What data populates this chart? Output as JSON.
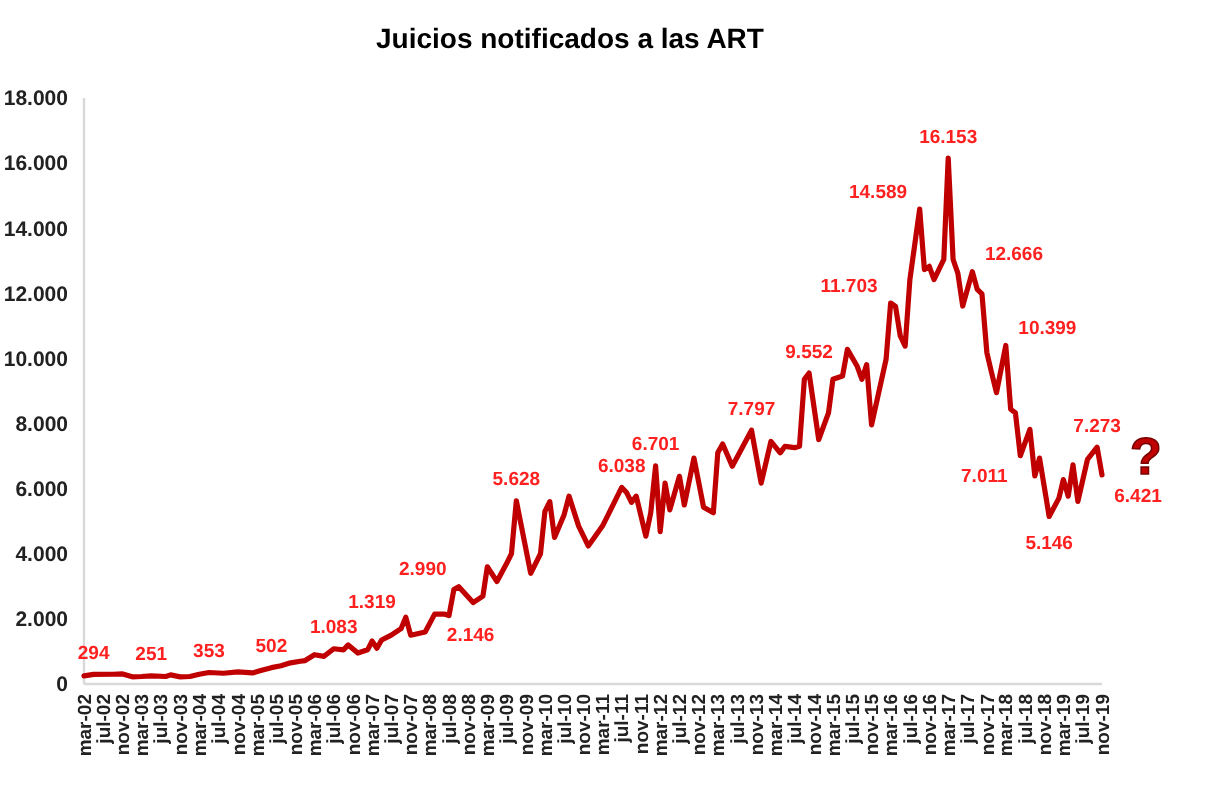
{
  "chart_data": {
    "type": "line",
    "title": "Juicios notificados a las ART",
    "x": [
      "2002-03",
      "2002-05",
      "2002-09",
      "2002-11",
      "2003-01",
      "2003-03",
      "2003-05",
      "2003-08",
      "2003-09",
      "2003-11",
      "2004-01",
      "2004-03",
      "2004-05",
      "2004-08",
      "2004-11",
      "2005-02",
      "2005-04",
      "2005-06",
      "2005-08",
      "2005-10",
      "2005-12",
      "2006-01",
      "2006-03",
      "2006-05",
      "2006-07",
      "2006-09",
      "2006-10",
      "2006-12",
      "2007-02",
      "2007-03",
      "2007-04",
      "2007-05",
      "2007-07",
      "2007-09",
      "2007-10",
      "2007-11",
      "2008-02",
      "2008-04",
      "2008-06",
      "2008-07",
      "2008-08",
      "2008-09",
      "2008-12",
      "2009-02",
      "2009-03",
      "2009-05",
      "2009-07",
      "2009-08",
      "2009-09",
      "2009-12",
      "2010-02",
      "2010-03",
      "2010-04",
      "2010-05",
      "2010-07",
      "2010-08",
      "2010-10",
      "2010-12",
      "2011-03",
      "2011-04",
      "2011-07",
      "2011-08",
      "2011-09",
      "2011-10",
      "2011-12",
      "2012-01",
      "2012-02",
      "2012-03",
      "2012-04",
      "2012-05",
      "2012-07",
      "2012-08",
      "2012-10",
      "2012-12",
      "2013-02",
      "2013-03",
      "2013-04",
      "2013-06",
      "2013-10",
      "2013-12",
      "2014-02",
      "2014-04",
      "2014-05",
      "2014-07",
      "2014-08",
      "2014-09",
      "2014-10",
      "2014-12",
      "2015-02",
      "2015-03",
      "2015-05",
      "2015-06",
      "2015-08",
      "2015-09",
      "2015-10",
      "2015-11",
      "2016-02",
      "2016-03",
      "2016-04",
      "2016-05",
      "2016-06",
      "2016-07",
      "2016-09",
      "2016-10",
      "2016-11",
      "2016-12",
      "2017-02",
      "2017-03",
      "2017-04",
      "2017-05",
      "2017-06",
      "2017-08",
      "2017-09",
      "2017-10",
      "2017-11",
      "2017-12",
      "2018-01",
      "2018-03",
      "2018-04",
      "2018-05",
      "2018-06",
      "2018-08",
      "2018-09",
      "2018-10",
      "2018-12",
      "2019-02",
      "2019-03",
      "2019-04",
      "2019-05",
      "2019-06",
      "2019-08",
      "2019-10",
      "2019-11"
    ],
    "series": [
      {
        "color": "#c00000",
        "values": [
          250,
          294,
          300,
          310,
          220,
          230,
          251,
          230,
          280,
          220,
          230,
          300,
          353,
          330,
          370,
          340,
          420,
          502,
          560,
          650,
          700,
          720,
          900,
          850,
          1083,
          1050,
          1200,
          950,
          1050,
          1319,
          1100,
          1350,
          1500,
          1700,
          2050,
          1500,
          1600,
          2146,
          2150,
          2100,
          2900,
          2990,
          2500,
          2700,
          3600,
          3150,
          3700,
          4000,
          5628,
          3400,
          4000,
          5300,
          5600,
          4500,
          5200,
          5770,
          4850,
          4240,
          4850,
          5150,
          6038,
          5880,
          5580,
          5770,
          4540,
          5260,
          6701,
          4680,
          6170,
          5350,
          6380,
          5500,
          6940,
          5430,
          5260,
          7100,
          7370,
          6690,
          7797,
          6170,
          7450,
          7100,
          7300,
          7260,
          7300,
          9360,
          9552,
          7510,
          8330,
          9360,
          9460,
          10280,
          9770,
          9360,
          9810,
          7960,
          9970,
          11703,
          11600,
          10690,
          10380,
          12420,
          14589,
          12730,
          12830,
          12420,
          13040,
          16153,
          13040,
          12620,
          11610,
          12666,
          12120,
          11980,
          10180,
          9560,
          8950,
          10399,
          8440,
          8330,
          7011,
          7820,
          6390,
          6940,
          5146,
          5710,
          6280,
          5770,
          6730,
          5610,
          6900,
          7273,
          6421
        ]
      }
    ],
    "xlim": [
      "2002-03",
      "2019-11"
    ],
    "xticks": [
      {
        "value": "2002-03",
        "label": "mar-02"
      },
      {
        "value": "2002-07",
        "label": "jul-02"
      },
      {
        "value": "2002-11",
        "label": "nov-02"
      },
      {
        "value": "2003-03",
        "label": "mar-03"
      },
      {
        "value": "2003-07",
        "label": "jul-03"
      },
      {
        "value": "2003-11",
        "label": "nov-03"
      },
      {
        "value": "2004-03",
        "label": "mar-04"
      },
      {
        "value": "2004-07",
        "label": "jul-04"
      },
      {
        "value": "2004-11",
        "label": "nov-04"
      },
      {
        "value": "2005-03",
        "label": "mar-05"
      },
      {
        "value": "2005-07",
        "label": "jul-05"
      },
      {
        "value": "2005-11",
        "label": "nov-05"
      },
      {
        "value": "2006-03",
        "label": "mar-06"
      },
      {
        "value": "2006-07",
        "label": "jul-06"
      },
      {
        "value": "2006-11",
        "label": "nov-06"
      },
      {
        "value": "2007-03",
        "label": "mar-07"
      },
      {
        "value": "2007-07",
        "label": "jul-07"
      },
      {
        "value": "2007-11",
        "label": "nov-07"
      },
      {
        "value": "2008-03",
        "label": "mar-08"
      },
      {
        "value": "2008-07",
        "label": "jul-08"
      },
      {
        "value": "2008-11",
        "label": "nov-08"
      },
      {
        "value": "2009-03",
        "label": "mar-09"
      },
      {
        "value": "2009-07",
        "label": "jul-09"
      },
      {
        "value": "2009-11",
        "label": "nov-09"
      },
      {
        "value": "2010-03",
        "label": "mar-10"
      },
      {
        "value": "2010-07",
        "label": "jul-10"
      },
      {
        "value": "2010-11",
        "label": "nov-10"
      },
      {
        "value": "2011-03",
        "label": "mar-11"
      },
      {
        "value": "2011-07",
        "label": "jul-11"
      },
      {
        "value": "2011-11",
        "label": "nov-11"
      },
      {
        "value": "2012-03",
        "label": "mar-12"
      },
      {
        "value": "2012-07",
        "label": "jul-12"
      },
      {
        "value": "2012-11",
        "label": "nov-12"
      },
      {
        "value": "2013-03",
        "label": "mar-13"
      },
      {
        "value": "2013-07",
        "label": "jul-13"
      },
      {
        "value": "2013-11",
        "label": "nov-13"
      },
      {
        "value": "2014-03",
        "label": "mar-14"
      },
      {
        "value": "2014-07",
        "label": "jul-14"
      },
      {
        "value": "2014-11",
        "label": "nov-14"
      },
      {
        "value": "2015-03",
        "label": "mar-15"
      },
      {
        "value": "2015-07",
        "label": "jul-15"
      },
      {
        "value": "2015-11",
        "label": "nov-15"
      },
      {
        "value": "2016-03",
        "label": "mar-16"
      },
      {
        "value": "2016-07",
        "label": "jul-16"
      },
      {
        "value": "2016-11",
        "label": "nov-16"
      },
      {
        "value": "2017-03",
        "label": "mar-17"
      },
      {
        "value": "2017-07",
        "label": "jul-17"
      },
      {
        "value": "2017-11",
        "label": "nov-17"
      },
      {
        "value": "2018-03",
        "label": "mar-18"
      },
      {
        "value": "2018-07",
        "label": "jul-18"
      },
      {
        "value": "2018-11",
        "label": "nov-18"
      },
      {
        "value": "2019-03",
        "label": "mar-19"
      },
      {
        "value": "2019-07",
        "label": "jul-19"
      },
      {
        "value": "2019-11",
        "label": "nov-19"
      }
    ],
    "ylim": [
      0,
      18000
    ],
    "yticks": [
      0,
      {
        "value": 2000,
        "label": "2.000"
      },
      {
        "value": 4000,
        "label": "4.000"
      },
      {
        "value": 6000,
        "label": "6.000"
      },
      {
        "value": 8000,
        "label": "8.000"
      },
      {
        "value": 10000,
        "label": "10.000"
      },
      {
        "value": 12000,
        "label": "12.000"
      },
      {
        "value": 14000,
        "label": "14.000"
      },
      {
        "value": 16000,
        "label": "16.000"
      },
      {
        "value": 18000,
        "label": "18.000"
      }
    ],
    "grid": false,
    "marker": "none",
    "line_style": "solid",
    "annotations": [
      {
        "text": "294",
        "x": "2002-05",
        "y": 294
      },
      {
        "text": "251",
        "x": "2003-05",
        "y": 251
      },
      {
        "text": "353",
        "x": "2004-05",
        "y": 353
      },
      {
        "text": "502",
        "x": "2005-06",
        "y": 502
      },
      {
        "text": "1.083",
        "x": "2006-07",
        "y": 1083
      },
      {
        "text": "1.319",
        "x": "2007-03",
        "y": 1319
      },
      {
        "text": "2.146",
        "x": "2008-04",
        "y": 2146
      },
      {
        "text": "2.990",
        "x": "2008-09",
        "y": 2990
      },
      {
        "text": "5.628",
        "x": "2009-09",
        "y": 5628
      },
      {
        "text": "6.038",
        "x": "2011-07",
        "y": 6038
      },
      {
        "text": "6.701",
        "x": "2012-02",
        "y": 6701
      },
      {
        "text": "7.797",
        "x": "2013-10",
        "y": 7797
      },
      {
        "text": "9.552",
        "x": "2014-10",
        "y": 9552
      },
      {
        "text": "11.703",
        "x": "2016-03",
        "y": 11703
      },
      {
        "text": "14.589",
        "x": "2016-09",
        "y": 14589
      },
      {
        "text": "16.153",
        "x": "2017-03",
        "y": 16153
      },
      {
        "text": "12.666",
        "x": "2017-08",
        "y": 12666
      },
      {
        "text": "10.399",
        "x": "2018-03",
        "y": 10399
      },
      {
        "text": "7.011",
        "x": "2018-06",
        "y": 7011
      },
      {
        "text": "5.146",
        "x": "2018-12",
        "y": 5146
      },
      {
        "text": "7.273",
        "x": "2019-10",
        "y": 7273
      },
      {
        "text": "6.421",
        "x": "2019-11",
        "y": 6421
      },
      "?"
    ]
  }
}
